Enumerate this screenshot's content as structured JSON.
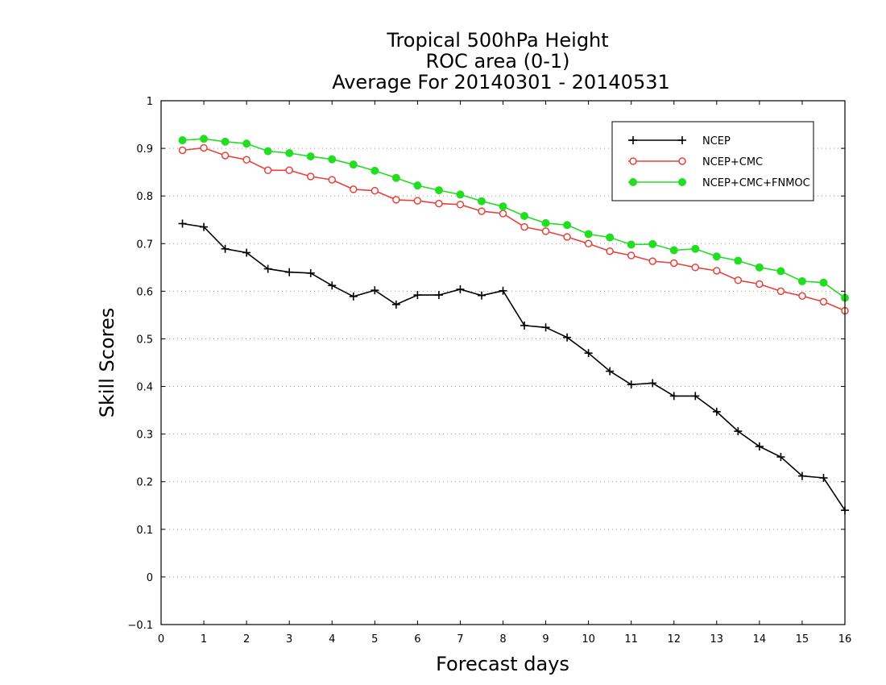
{
  "chart_data": {
    "type": "line",
    "title": [
      "Tropical 500hPa Height",
      "ROC area (0-1)",
      "Average For 20140301 - 20140531"
    ],
    "xlabel": "Forecast days",
    "ylabel": "Skill Scores",
    "xlim": [
      0,
      16
    ],
    "ylim": [
      -0.1,
      1
    ],
    "xticks": [
      "0",
      "1",
      "2",
      "3",
      "4",
      "5",
      "6",
      "7",
      "8",
      "9",
      "10",
      "11",
      "12",
      "13",
      "14",
      "15",
      "16"
    ],
    "yticks": [
      "−0.1",
      "0",
      "0.1",
      "0.2",
      "0.3",
      "0.4",
      "0.5",
      "0.6",
      "0.7",
      "0.8",
      "0.9",
      "1"
    ],
    "grid": "horizontal-dotted",
    "legend_position": "top-right",
    "x": [
      0.5,
      1,
      1.5,
      2,
      2.5,
      3,
      3.5,
      4,
      4.5,
      5,
      5.5,
      6,
      6.5,
      7,
      7.5,
      8,
      8.5,
      9,
      9.5,
      10,
      10.5,
      11,
      11.5,
      12,
      12.5,
      13,
      13.5,
      14,
      14.5,
      15,
      15.5,
      16
    ],
    "series": [
      {
        "name": "NCEP",
        "color": "#000000",
        "marker": "plus",
        "values": [
          0.742,
          0.735,
          0.689,
          0.681,
          0.647,
          0.64,
          0.638,
          0.612,
          0.589,
          0.602,
          0.572,
          0.592,
          0.592,
          0.604,
          0.591,
          0.601,
          0.528,
          0.524,
          0.503,
          0.47,
          0.432,
          0.404,
          0.407,
          0.38,
          0.38,
          0.347,
          0.306,
          0.274,
          0.252,
          0.212,
          0.208,
          0.14
        ]
      },
      {
        "name": "NCEP+CMC",
        "color": "#e8413c",
        "marker": "open-circle",
        "values": [
          0.896,
          0.901,
          0.885,
          0.876,
          0.854,
          0.854,
          0.841,
          0.834,
          0.814,
          0.811,
          0.792,
          0.79,
          0.784,
          0.782,
          0.768,
          0.763,
          0.735,
          0.726,
          0.714,
          0.7,
          0.684,
          0.675,
          0.663,
          0.659,
          0.65,
          0.643,
          0.623,
          0.615,
          0.6,
          0.59,
          0.578,
          0.559
        ]
      },
      {
        "name": "NCEP+CMC+FNMOC",
        "color": "#22dd22",
        "marker": "filled-circle",
        "values": [
          0.917,
          0.92,
          0.914,
          0.91,
          0.894,
          0.89,
          0.883,
          0.877,
          0.866,
          0.853,
          0.838,
          0.822,
          0.812,
          0.803,
          0.789,
          0.778,
          0.758,
          0.743,
          0.739,
          0.72,
          0.713,
          0.698,
          0.699,
          0.686,
          0.689,
          0.673,
          0.664,
          0.65,
          0.642,
          0.621,
          0.618,
          0.586
        ]
      }
    ]
  }
}
